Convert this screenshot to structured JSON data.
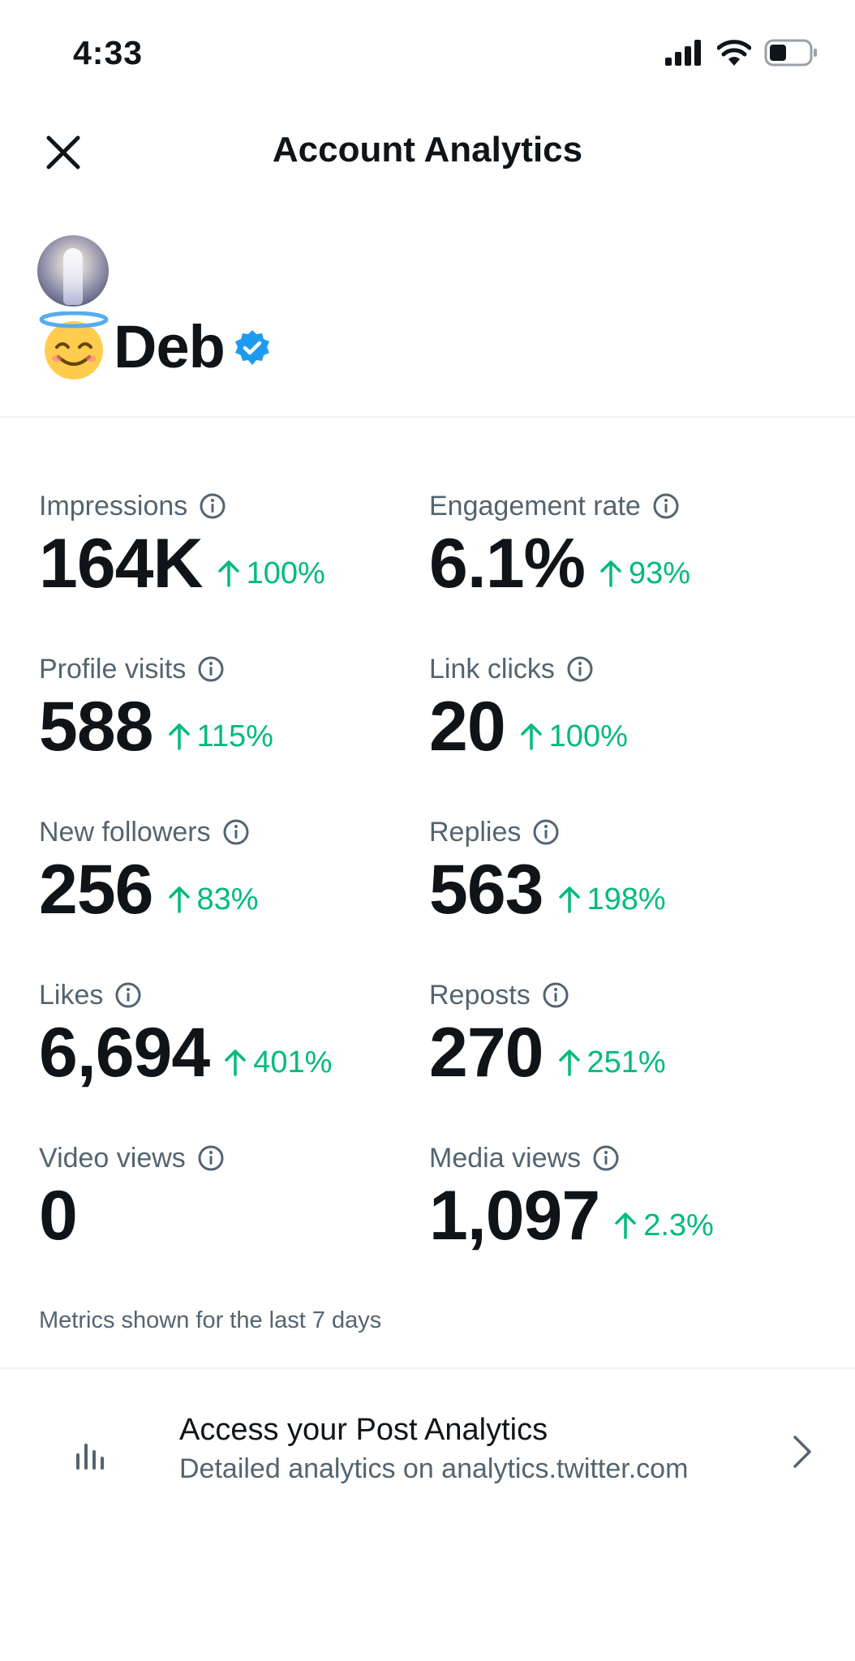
{
  "status_bar": {
    "time": "4:33"
  },
  "header": {
    "title": "Account Analytics"
  },
  "profile": {
    "name": "Deb"
  },
  "metrics": [
    {
      "label": "Impressions",
      "value": "164K",
      "change": "100%"
    },
    {
      "label": "Engagement rate",
      "value": "6.1%",
      "change": "93%"
    },
    {
      "label": "Profile visits",
      "value": "588",
      "change": "115%"
    },
    {
      "label": "Link clicks",
      "value": "20",
      "change": "100%"
    },
    {
      "label": "New followers",
      "value": "256",
      "change": "83%"
    },
    {
      "label": "Replies",
      "value": "563",
      "change": "198%"
    },
    {
      "label": "Likes",
      "value": "6,694",
      "change": "401%"
    },
    {
      "label": "Reposts",
      "value": "270",
      "change": "251%"
    },
    {
      "label": "Video views",
      "value": "0",
      "change": ""
    },
    {
      "label": "Media views",
      "value": "1,097",
      "change": "2.3%"
    }
  ],
  "metrics_note": "Metrics shown for the last 7 days",
  "post_analytics": {
    "title": "Access your Post Analytics",
    "subtitle": "Detailed analytics on analytics.twitter.com"
  },
  "colors": {
    "positive": "#00ba7c",
    "verified": "#1d9bf0",
    "secondary_text": "#536471",
    "primary_text": "#0f1419"
  },
  "icons": [
    "signal-icon",
    "wifi-icon",
    "battery-icon",
    "close-icon",
    "smiling-halo-emoji-icon",
    "verified-badge-icon",
    "info-icon",
    "arrow-up-icon",
    "bar-chart-icon",
    "chevron-right-icon"
  ]
}
